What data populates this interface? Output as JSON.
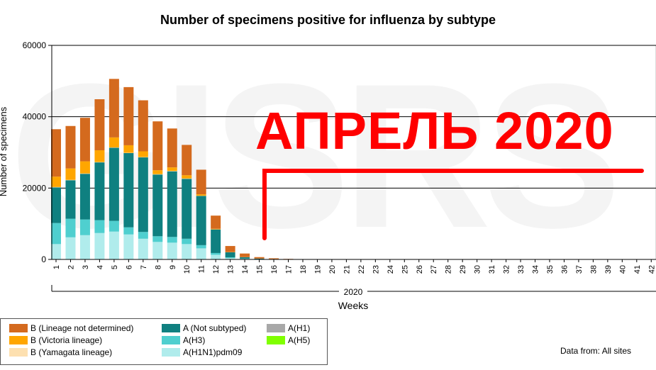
{
  "chart_data": {
    "type": "bar",
    "stacked": true,
    "title": "Number of specimens positive for influenza by subtype",
    "ylabel": "Number of specimens",
    "xlabel": "Weeks",
    "year_label": "2020",
    "ylim": [
      0,
      60000
    ],
    "yticks": [
      "0",
      "20000",
      "40000",
      "60000"
    ],
    "grid": "horizontal",
    "legend_position": "bottom-left",
    "categories": [
      "1",
      "2",
      "3",
      "4",
      "5",
      "6",
      "7",
      "8",
      "9",
      "10",
      "11",
      "12",
      "13",
      "14",
      "15",
      "16",
      "17",
      "18",
      "19",
      "20",
      "21",
      "22",
      "23",
      "24",
      "25",
      "26",
      "27",
      "28",
      "29",
      "30",
      "31",
      "32",
      "33",
      "34",
      "35",
      "36",
      "37",
      "38",
      "39",
      "40",
      "41",
      "42"
    ],
    "series": [
      {
        "name": "A(H1N1)pdm09",
        "color": "#b0ecec",
        "values": [
          4300,
          6200,
          6800,
          7400,
          7800,
          7000,
          5800,
          4900,
          4700,
          4300,
          3100,
          1300,
          400,
          150,
          60,
          30,
          20,
          10,
          5,
          0,
          0,
          0,
          0,
          0,
          0,
          0,
          0,
          0,
          0,
          0,
          0,
          0,
          0,
          0,
          0,
          0,
          0,
          0,
          0,
          0,
          0,
          0
        ]
      },
      {
        "name": "A(H3)",
        "color": "#4fcfcf",
        "values": [
          5900,
          5200,
          4400,
          3600,
          3000,
          2000,
          1900,
          1600,
          1600,
          1500,
          900,
          500,
          200,
          80,
          30,
          15,
          10,
          5,
          0,
          0,
          0,
          0,
          0,
          0,
          0,
          0,
          0,
          0,
          0,
          0,
          0,
          0,
          0,
          0,
          0,
          0,
          0,
          0,
          0,
          0,
          0,
          0
        ]
      },
      {
        "name": "A(Not subtyped)",
        "color": "#0f8080",
        "values": [
          10000,
          10800,
          12800,
          16200,
          20500,
          20800,
          20900,
          17300,
          18400,
          16800,
          13800,
          6600,
          1400,
          400,
          150,
          70,
          40,
          20,
          10,
          5,
          0,
          0,
          0,
          0,
          0,
          0,
          0,
          0,
          0,
          0,
          0,
          0,
          0,
          0,
          0,
          0,
          0,
          0,
          0,
          0,
          0,
          0
        ]
      },
      {
        "name": "B (Yamagata lineage)",
        "color": "#fde0b0",
        "values": [
          100,
          100,
          100,
          100,
          100,
          100,
          100,
          100,
          100,
          100,
          50,
          30,
          10,
          5,
          0,
          0,
          0,
          0,
          0,
          0,
          0,
          0,
          0,
          0,
          0,
          0,
          0,
          0,
          0,
          0,
          0,
          0,
          0,
          0,
          0,
          0,
          0,
          0,
          0,
          0,
          0,
          0
        ]
      },
      {
        "name": "B (Victoria lineage)",
        "color": "#ffa600",
        "values": [
          2900,
          3200,
          3400,
          3300,
          2800,
          2100,
          1600,
          1100,
          1000,
          900,
          400,
          150,
          50,
          20,
          10,
          5,
          0,
          0,
          0,
          0,
          0,
          0,
          0,
          0,
          0,
          0,
          0,
          0,
          0,
          0,
          0,
          0,
          0,
          0,
          0,
          0,
          0,
          0,
          0,
          0,
          0,
          0
        ]
      },
      {
        "name": "B (Lineage not determined)",
        "color": "#d46a1e",
        "values": [
          13300,
          11900,
          12200,
          14300,
          16400,
          16300,
          14300,
          13700,
          10900,
          8500,
          6900,
          3700,
          1700,
          1000,
          400,
          200,
          80,
          40,
          20,
          10,
          5,
          0,
          0,
          0,
          0,
          0,
          0,
          0,
          0,
          0,
          0,
          0,
          0,
          0,
          0,
          0,
          0,
          0,
          0,
          0,
          0,
          0
        ]
      },
      {
        "name": "A(H1)",
        "color": "#a8a8a8",
        "values": [
          0,
          0,
          0,
          0,
          0,
          0,
          0,
          0,
          0,
          0,
          0,
          0,
          0,
          0,
          0,
          0,
          0,
          0,
          0,
          0,
          0,
          0,
          0,
          0,
          0,
          0,
          0,
          0,
          0,
          0,
          0,
          0,
          0,
          0,
          0,
          0,
          0,
          0,
          0,
          0,
          0,
          0
        ]
      },
      {
        "name": "A(H5)",
        "color": "#80ff00",
        "values": [
          0,
          0,
          0,
          0,
          0,
          0,
          0,
          0,
          0,
          0,
          0,
          0,
          0,
          0,
          0,
          0,
          0,
          0,
          0,
          0,
          0,
          0,
          0,
          0,
          0,
          0,
          0,
          0,
          0,
          0,
          0,
          0,
          0,
          0,
          0,
          0,
          0,
          0,
          0,
          0,
          0,
          0
        ]
      }
    ],
    "overlay_text": "АПРЕЛЬ 2020",
    "overlay_color": "#ff0000",
    "watermark_text": "GISRS"
  },
  "legend": {
    "items": [
      {
        "label": "B (Lineage not determined)",
        "color": "#d46a1e"
      },
      {
        "label": "A (Not subtyped)",
        "color": "#0f8080"
      },
      {
        "label": "A(H1)",
        "color": "#a8a8a8"
      },
      {
        "label": "B (Victoria lineage)",
        "color": "#ffa600"
      },
      {
        "label": "A(H3)",
        "color": "#4fcfcf"
      },
      {
        "label": "A(H5)",
        "color": "#80ff00"
      },
      {
        "label": "B (Yamagata lineage)",
        "color": "#fde0b0"
      },
      {
        "label": "A(H1N1)pdm09",
        "color": "#b0ecec"
      }
    ]
  },
  "source_note": "Data from: All sites"
}
